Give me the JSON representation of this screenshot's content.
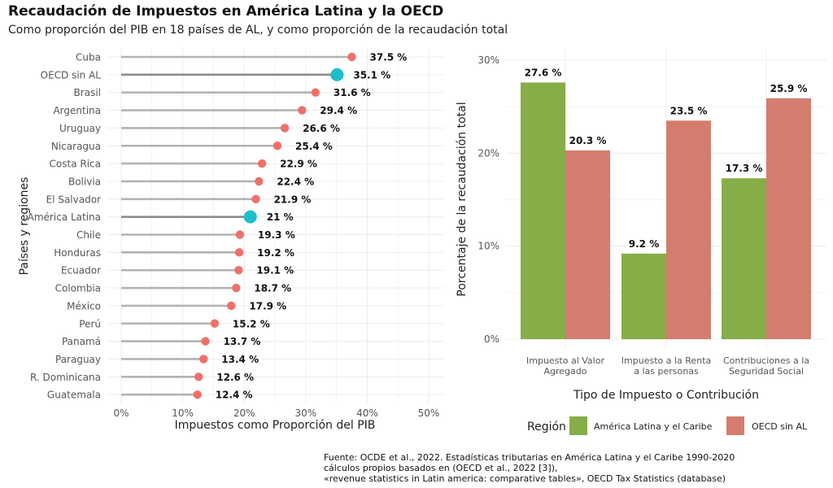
{
  "title": "Recaudación de Impuestos en América Latina y la OECD",
  "subtitle": "Como proporción del PIB en 18 países de AL, y como proporción de la recaudación total",
  "source_lines": [
    "Fuente: OCDE et al., 2022. Estadísticas tributarias en América Latina y el Caribe 1990-2020",
    "cálculos propios basados en (OECD et al., 2022 [3]),",
    "«revenue statistics in Latin america: comparative tables», OECD Tax Statistics (database)"
  ],
  "chart_data": [
    {
      "type": "lollipop",
      "xlabel": "Impuestos como Proporción del PIB",
      "ylabel": "Países y regiones",
      "xlim": [
        0,
        50
      ],
      "x_ticks": [
        0,
        10,
        20,
        30,
        40,
        50
      ],
      "x_tick_labels": [
        "0%",
        "10%",
        "20%",
        "30%",
        "40%",
        "50%"
      ],
      "grid": true,
      "colors": {
        "country": "#f07069",
        "region": "#1bbfc9",
        "stem": "#b3b3b3",
        "region_stem": "#8c8c8c"
      },
      "categories": [
        "Cuba",
        "OECD sin AL",
        "Brasil",
        "Argentina",
        "Uruguay",
        "Nicaragua",
        "Costa Rica",
        "Bolivia",
        "El Salvador",
        "América Latina",
        "Chile",
        "Honduras",
        "Ecuador",
        "Colombia",
        "México",
        "Perú",
        "Panamá",
        "Paraguay",
        "R. Dominicana",
        "Guatemala"
      ],
      "values": [
        37.5,
        35.1,
        31.6,
        29.4,
        26.6,
        25.4,
        22.9,
        22.4,
        21.9,
        21.0,
        19.3,
        19.2,
        19.1,
        18.7,
        17.9,
        15.2,
        13.7,
        13.4,
        12.6,
        12.4
      ],
      "value_labels": [
        "37.5 %",
        "35.1 %",
        "31.6 %",
        "29.4 %",
        "26.6 %",
        "25.4 %",
        "22.9 %",
        "22.4 %",
        "21.9 %",
        "21 %",
        "19.3 %",
        "19.2 %",
        "19.1 %",
        "18.7 %",
        "17.9 %",
        "15.2 %",
        "13.7 %",
        "13.4 %",
        "12.6 %",
        "12.4 %"
      ],
      "highlight": [
        "OECD sin AL",
        "América Latina"
      ]
    },
    {
      "type": "bar",
      "xlabel": "Tipo de Impuesto o Contribución",
      "ylabel": "Porcentaje de la recaudación total",
      "ylim": [
        0,
        30
      ],
      "y_ticks": [
        0,
        10,
        20,
        30
      ],
      "y_tick_labels": [
        "0%",
        "10%",
        "20%",
        "30%"
      ],
      "grid": true,
      "categories": [
        [
          "Impuesto al Valor",
          "Agregado"
        ],
        [
          "Impuesto a la Renta",
          "a las personas"
        ],
        [
          "Contribuciones a la",
          "Seguridad Social"
        ]
      ],
      "series": [
        {
          "name": "América Latina y el Caribe",
          "color": "#86ad47",
          "values": [
            27.6,
            9.2,
            17.3
          ],
          "labels": [
            "27.6 %",
            "9.2 %",
            "17.3 %"
          ]
        },
        {
          "name": "OECD sin AL",
          "color": "#d47d6f",
          "values": [
            20.3,
            23.5,
            25.9
          ],
          "labels": [
            "20.3 %",
            "23.5 %",
            "25.9 %"
          ]
        }
      ],
      "legend_title": "Región",
      "legend_position": "bottom"
    }
  ]
}
